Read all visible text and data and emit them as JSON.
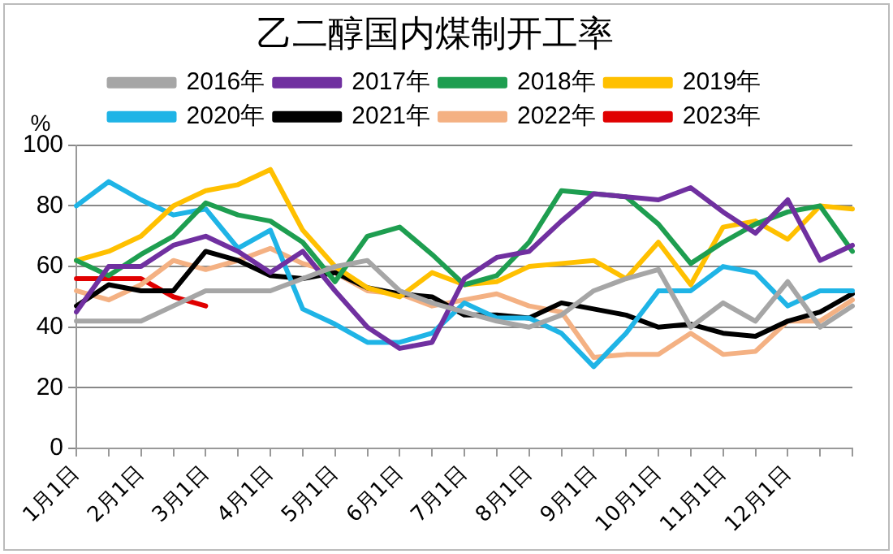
{
  "chart_data": {
    "type": "line",
    "title": "乙二醇国内煤制开工率",
    "ylabel": "%",
    "categories": [
      "1月1日",
      null,
      "2月1日",
      null,
      "3月1日",
      null,
      "4月1日",
      null,
      "5月1日",
      null,
      "6月1日",
      null,
      "7月1日",
      null,
      "8月1日",
      null,
      "9月1日",
      null,
      "10月1日",
      null,
      "11月1日",
      null,
      "12月1日",
      null,
      null
    ],
    "ylim": [
      0,
      100
    ],
    "yticks": [
      0,
      20,
      40,
      60,
      80,
      100
    ],
    "grid": "y",
    "legend": "top",
    "marker": "none",
    "line_style": "solid",
    "series": [
      {
        "name": "2016年",
        "color": "#a6a6a6",
        "values": [
          42,
          42,
          42,
          47,
          52,
          52,
          52,
          56,
          60,
          62,
          52,
          48,
          45,
          42,
          40,
          44,
          52,
          56,
          59,
          40,
          48,
          42,
          55,
          40,
          47
        ]
      },
      {
        "name": "2017年",
        "color": "#7030a0",
        "values": [
          45,
          60,
          60,
          67,
          70,
          65,
          58,
          65,
          52,
          40,
          33,
          35,
          56,
          63,
          65,
          75,
          84,
          83,
          82,
          86,
          78,
          71,
          82,
          62,
          67
        ]
      },
      {
        "name": "2018年",
        "color": "#1e9e50",
        "values": [
          62,
          57,
          64,
          70,
          81,
          77,
          75,
          68,
          55,
          70,
          73,
          64,
          54,
          57,
          68,
          85,
          84,
          83,
          74,
          61,
          68,
          74,
          78,
          80,
          65
        ]
      },
      {
        "name": "2019年",
        "color": "#ffc000",
        "values": [
          62,
          65,
          70,
          80,
          85,
          87,
          92,
          72,
          60,
          53,
          50,
          58,
          54,
          55,
          60,
          61,
          62,
          56,
          68,
          54,
          73,
          75,
          69,
          80,
          79
        ]
      },
      {
        "name": "2020年",
        "color": "#1fb4e6",
        "values": [
          80,
          88,
          82,
          77,
          79,
          66,
          72,
          46,
          41,
          35,
          35,
          38,
          48,
          43,
          43,
          38,
          27,
          38,
          52,
          52,
          60,
          58,
          47,
          52,
          52
        ]
      },
      {
        "name": "2021年",
        "color": "#000000",
        "values": [
          47,
          54,
          52,
          52,
          65,
          62,
          57,
          56,
          58,
          53,
          51,
          50,
          44,
          44,
          43,
          48,
          46,
          44,
          40,
          41,
          38,
          37,
          42,
          45,
          51
        ]
      },
      {
        "name": "2022年",
        "color": "#f4b183",
        "values": [
          52,
          49,
          54,
          62,
          59,
          62,
          66,
          61,
          58,
          52,
          51,
          47,
          49,
          51,
          47,
          45,
          30,
          31,
          31,
          38,
          31,
          32,
          42,
          42,
          49
        ]
      },
      {
        "name": "2023年",
        "color": "#e00000",
        "values": [
          56,
          56,
          56,
          50,
          47,
          null,
          null,
          null,
          null,
          null,
          null,
          null,
          null,
          null,
          null,
          null,
          null,
          null,
          null,
          null,
          null,
          null,
          null,
          null,
          null
        ]
      }
    ]
  }
}
